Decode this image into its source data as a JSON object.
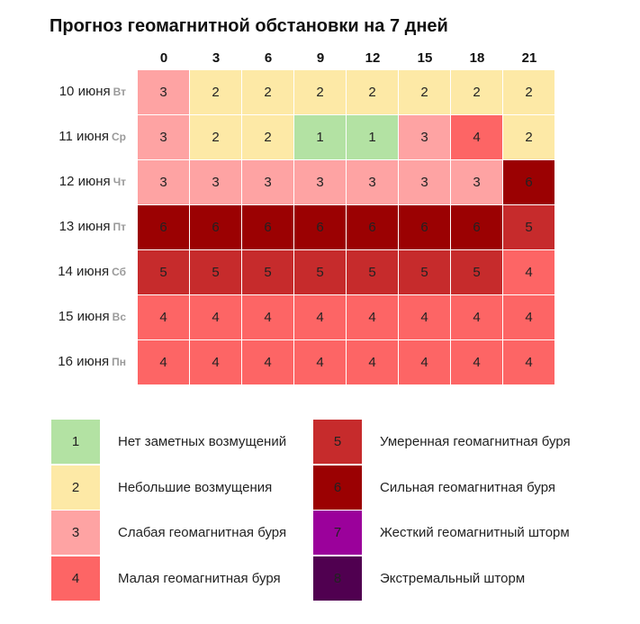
{
  "title": "Прогноз геомагнитной обстановки на 7 дней",
  "chart_data": {
    "type": "heatmap",
    "title": "Прогноз геомагнитной обстановки на 7 дней",
    "x": [
      "0",
      "3",
      "6",
      "9",
      "12",
      "15",
      "18",
      "21"
    ],
    "y": [
      {
        "date": "10 июня",
        "weekday": "Вт"
      },
      {
        "date": "11 июня",
        "weekday": "Ср"
      },
      {
        "date": "12 июня",
        "weekday": "Чт"
      },
      {
        "date": "13 июня",
        "weekday": "Пт"
      },
      {
        "date": "14 июня",
        "weekday": "Сб"
      },
      {
        "date": "15 июня",
        "weekday": "Вс"
      },
      {
        "date": "16 июня",
        "weekday": "Пн"
      }
    ],
    "values": [
      [
        3,
        2,
        2,
        2,
        2,
        2,
        2,
        2
      ],
      [
        3,
        2,
        2,
        1,
        1,
        3,
        4,
        2
      ],
      [
        3,
        3,
        3,
        3,
        3,
        3,
        3,
        6
      ],
      [
        6,
        6,
        6,
        6,
        6,
        6,
        6,
        5
      ],
      [
        5,
        5,
        5,
        5,
        5,
        5,
        5,
        4
      ],
      [
        4,
        4,
        4,
        4,
        4,
        4,
        4,
        4
      ],
      [
        4,
        4,
        4,
        4,
        4,
        4,
        4,
        4
      ]
    ],
    "legend": [
      {
        "level": "1",
        "label": "Нет заметных возмущений",
        "color": "#b3e2a3"
      },
      {
        "level": "2",
        "label": "Небольшие возмущения",
        "color": "#fde9a6"
      },
      {
        "level": "3",
        "label": "Слабая геомагнитная буря",
        "color": "#fea3a3"
      },
      {
        "level": "4",
        "label": "Малая геомагнитная буря",
        "color": "#fd6565"
      },
      {
        "level": "5",
        "label": "Умеренная геомагнитная буря",
        "color": "#c62b2c"
      },
      {
        "level": "6",
        "label": "Сильная геомагнитная буря",
        "color": "#9b0102"
      },
      {
        "level": "7",
        "label": "Жесткий геомагнитный шторм",
        "color": "#9b019b"
      },
      {
        "level": "8",
        "label": "Экстремальный шторм",
        "color": "#500050"
      }
    ]
  }
}
